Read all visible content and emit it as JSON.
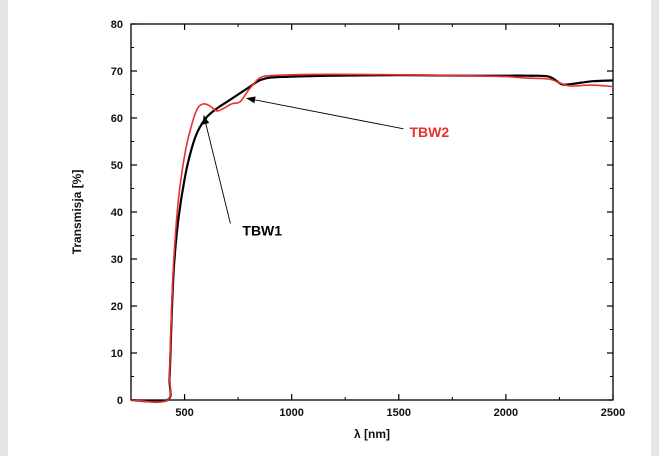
{
  "chart_data": {
    "type": "line",
    "xlabel": "λ [nm]",
    "ylabel": "Transmisja [%]",
    "xlim": [
      250,
      2500
    ],
    "ylim": [
      0,
      80
    ],
    "xticks": [
      500,
      1000,
      1500,
      2000,
      2500
    ],
    "yticks": [
      0,
      10,
      20,
      30,
      40,
      50,
      60,
      70,
      80
    ],
    "grid": false,
    "series": [
      {
        "name": "TBW1",
        "color": "#000000",
        "points": [
          [
            250,
            0
          ],
          [
            420,
            0
          ],
          [
            430,
            5
          ],
          [
            440,
            18
          ],
          [
            450,
            28
          ],
          [
            470,
            38
          ],
          [
            500,
            47
          ],
          [
            530,
            53
          ],
          [
            560,
            57
          ],
          [
            600,
            60
          ],
          [
            650,
            62
          ],
          [
            700,
            63.5
          ],
          [
            750,
            65
          ],
          [
            800,
            66.5
          ],
          [
            850,
            68
          ],
          [
            900,
            68.6
          ],
          [
            1000,
            68.8
          ],
          [
            1200,
            69
          ],
          [
            1500,
            69.1
          ],
          [
            1800,
            69
          ],
          [
            2000,
            69
          ],
          [
            2100,
            69
          ],
          [
            2200,
            68.8
          ],
          [
            2260,
            67.2
          ],
          [
            2300,
            67.2
          ],
          [
            2400,
            67.8
          ],
          [
            2500,
            68
          ]
        ]
      },
      {
        "name": "TBW2",
        "color": "#e8312f",
        "points": [
          [
            250,
            0
          ],
          [
            420,
            0
          ],
          [
            430,
            6
          ],
          [
            440,
            20
          ],
          [
            450,
            30
          ],
          [
            470,
            42
          ],
          [
            500,
            52
          ],
          [
            530,
            58
          ],
          [
            560,
            62
          ],
          [
            590,
            63
          ],
          [
            620,
            62.5
          ],
          [
            650,
            61.5
          ],
          [
            680,
            62
          ],
          [
            720,
            63
          ],
          [
            760,
            63.5
          ],
          [
            800,
            66
          ],
          [
            850,
            68.5
          ],
          [
            900,
            69
          ],
          [
            1000,
            69.2
          ],
          [
            1200,
            69.3
          ],
          [
            1500,
            69.2
          ],
          [
            1800,
            69
          ],
          [
            2000,
            68.8
          ],
          [
            2100,
            68.5
          ],
          [
            2200,
            68.3
          ],
          [
            2250,
            67.5
          ],
          [
            2300,
            66.8
          ],
          [
            2400,
            67
          ],
          [
            2500,
            66.7
          ]
        ]
      }
    ],
    "annotations": [
      {
        "text": "TBW1",
        "color": "#000000",
        "label_at": [
          770,
          35
        ],
        "arrow_to": [
          590,
          60.5
        ]
      },
      {
        "text": "TBW2",
        "color": "#e8312f",
        "label_at": [
          1550,
          56
        ],
        "arrow_to": [
          790,
          64.2
        ]
      }
    ]
  }
}
